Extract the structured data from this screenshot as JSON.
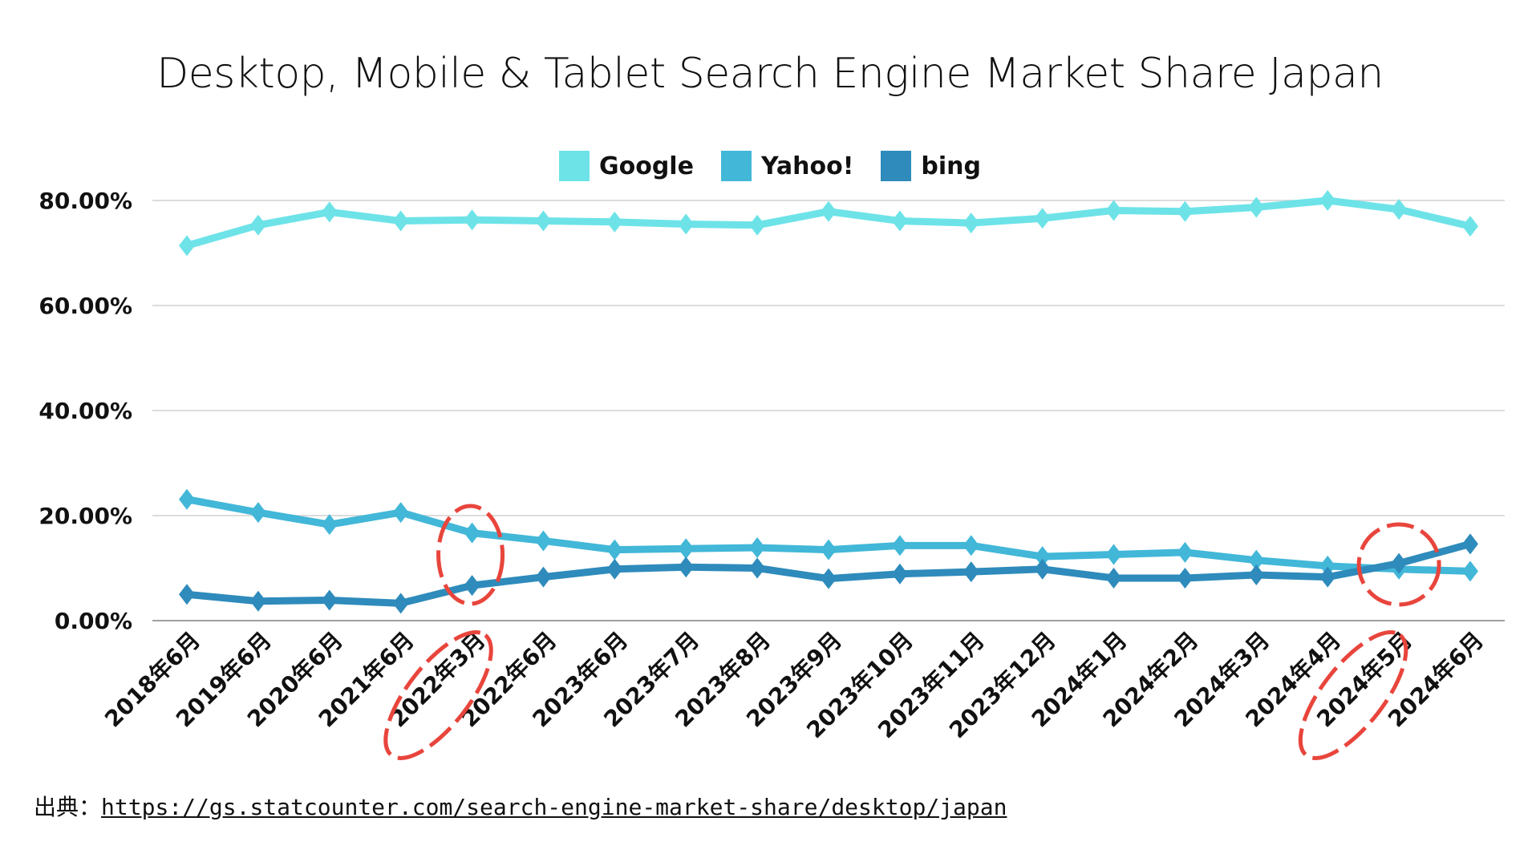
{
  "chart_data": {
    "type": "line",
    "title": "Desktop, Mobile & Tablet Search Engine Market Share Japan",
    "xlabel": "",
    "ylabel": "",
    "ylim": [
      0,
      80
    ],
    "y_ticks": [
      "0.00%",
      "20.00%",
      "40.00%",
      "60.00%",
      "80.00%"
    ],
    "y_tick_values": [
      0,
      20,
      40,
      60,
      80
    ],
    "grid": true,
    "legend_position": "top-center",
    "categories": [
      "2018年6月",
      "2019年6月",
      "2020年6月",
      "2021年6月",
      "2022年3月",
      "2022年6月",
      "2023年6月",
      "2023年7月",
      "2023年8月",
      "2023年9月",
      "2023年10月",
      "2023年11月",
      "2023年12月",
      "2024年1月",
      "2024年2月",
      "2024年3月",
      "2024年4月",
      "2024年5月",
      "2024年6月"
    ],
    "series": [
      {
        "name": "Google",
        "color": "#6de3e8",
        "values": [
          71.4,
          75.3,
          77.8,
          76.1,
          76.3,
          76.1,
          75.9,
          75.5,
          75.3,
          77.9,
          76.1,
          75.7,
          76.6,
          78.1,
          77.9,
          78.7,
          80.0,
          78.3,
          75.1
        ]
      },
      {
        "name": "Yahoo!",
        "color": "#42b7d8",
        "values": [
          23.1,
          20.6,
          18.3,
          20.6,
          16.7,
          15.2,
          13.5,
          13.7,
          13.9,
          13.5,
          14.3,
          14.3,
          12.2,
          12.6,
          13.0,
          11.5,
          10.4,
          9.8,
          9.4
        ]
      },
      {
        "name": "bing",
        "color": "#2e8bbb",
        "values": [
          5.0,
          3.7,
          3.9,
          3.3,
          6.7,
          8.3,
          9.8,
          10.2,
          10.0,
          8.0,
          8.9,
          9.3,
          9.8,
          8.1,
          8.1,
          8.7,
          8.3,
          10.9,
          14.6
        ]
      }
    ],
    "annotations": [
      {
        "type": "dashed-ellipse",
        "color": "#e8453c",
        "category": "2022年3月",
        "target": "crossing region of Yahoo! and bing"
      },
      {
        "type": "dashed-ellipse",
        "color": "#e8453c",
        "category": "2024年5月",
        "target": "bing overtakes Yahoo!"
      }
    ]
  },
  "source": {
    "prefix": "出典：",
    "link_text": "https://gs.statcounter.com/search-engine-market-share/desktop/japan"
  },
  "colors": {
    "gridline": "#d0d0d0",
    "axis": "#a0a0a0",
    "annotation": "#e8453c"
  }
}
